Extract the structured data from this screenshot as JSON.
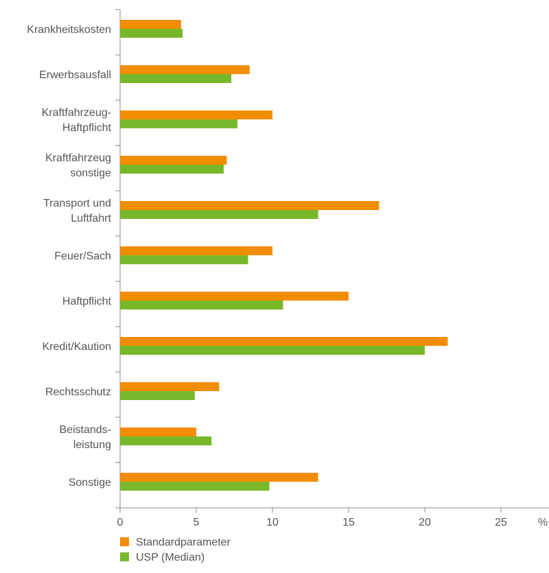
{
  "chart_data": {
    "type": "bar",
    "orientation": "horizontal",
    "title": "",
    "xlabel": "",
    "ylabel": "",
    "x_unit": "%",
    "xlim": [
      0,
      28
    ],
    "xticks": [
      0,
      5,
      10,
      15,
      20,
      25
    ],
    "grid": false,
    "legend_position": "bottom-left",
    "categories": [
      [
        "Krankheitskosten"
      ],
      [
        "Erwerbsausfall"
      ],
      [
        "Kraftfahrzeug-",
        "Haftpflicht"
      ],
      [
        "Kraftfahrzeug",
        "sonstige"
      ],
      [
        "Transport und",
        "Luftfahrt"
      ],
      [
        "Feuer/Sach"
      ],
      [
        "Haftpflicht"
      ],
      [
        "Kredit/Kaution"
      ],
      [
        "Rechtsschutz"
      ],
      [
        "Beistands-",
        "leistung"
      ],
      [
        "Sonstige"
      ]
    ],
    "series": [
      {
        "name": "Standardparameter",
        "color": "#F28C00",
        "values": [
          4.0,
          8.5,
          10.0,
          7.0,
          17.0,
          10.0,
          15.0,
          21.5,
          6.5,
          5.0,
          13.0
        ]
      },
      {
        "name": "USP (Median)",
        "color": "#77B82A",
        "values": [
          4.1,
          7.3,
          7.7,
          6.8,
          13.0,
          8.4,
          10.7,
          20.0,
          4.9,
          6.0,
          9.8
        ]
      }
    ]
  }
}
